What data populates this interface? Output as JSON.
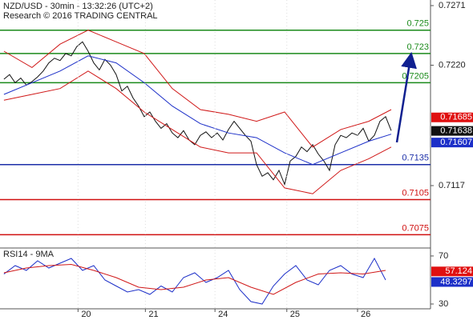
{
  "chart_data": [
    {
      "type": "line",
      "title": "NZD/USD - 30min - 13:32:26 (UTC+2)",
      "subtitle": "Research © 2016 TRADING CENTRAL",
      "xlim": [
        -0.7,
        76
      ],
      "ylim": [
        0.70636,
        0.72758
      ],
      "yticks": [
        0.7271,
        {
          "value": 0.722,
          "label": "0.7220"
        },
        0.7117
      ],
      "levels": [
        {
          "value": 0.725,
          "color": "#1a8a1a"
        },
        {
          "value": 0.723,
          "color": "#1a8a1a"
        },
        {
          "value": 0.7205,
          "color": "#1a8a1a"
        },
        {
          "value": 0.7135,
          "color": "#1c2fa8"
        },
        {
          "value": 0.7105,
          "color": "#d01010"
        },
        {
          "value": 0.7075,
          "color": "#d01010"
        }
      ],
      "markers": [
        {
          "value": 0.71685,
          "color": "#e01010"
        },
        {
          "value": 0.71638,
          "color": "#111111"
        },
        {
          "value": 0.71607,
          "color": "#1c2fc8"
        }
      ],
      "series": [
        {
          "color": "#111111",
          "x": [
            0,
            1,
            2,
            3,
            4,
            5,
            6,
            7,
            8,
            9,
            10,
            11,
            12,
            13,
            14,
            15,
            16,
            17,
            18,
            19,
            20,
            21,
            22,
            23,
            24,
            25,
            26,
            27,
            28,
            29,
            30,
            31,
            32,
            33,
            34,
            35,
            36,
            37,
            38,
            39,
            40,
            41,
            42,
            43,
            44,
            45,
            46,
            47,
            48,
            49,
            50,
            51,
            52,
            53,
            54,
            55,
            56,
            57,
            58,
            59,
            60,
            61,
            62,
            63,
            64,
            65,
            66,
            67,
            68,
            69
          ],
          "values": [
            0.7208,
            0.7212,
            0.7205,
            0.7209,
            0.7203,
            0.7206,
            0.721,
            0.7215,
            0.7222,
            0.7226,
            0.7224,
            0.723,
            0.7228,
            0.7236,
            0.724,
            0.7232,
            0.7222,
            0.7216,
            0.7225,
            0.722,
            0.7212,
            0.7198,
            0.7202,
            0.7192,
            0.7185,
            0.7176,
            0.718,
            0.7172,
            0.7166,
            0.717,
            0.7162,
            0.7158,
            0.7164,
            0.7156,
            0.7152,
            0.716,
            0.7163,
            0.7158,
            0.7162,
            0.7156,
            0.7165,
            0.7172,
            0.7166,
            0.716,
            0.7155,
            0.7135,
            0.7125,
            0.7128,
            0.7122,
            0.713,
            0.7118,
            0.7138,
            0.7142,
            0.715,
            0.7146,
            0.7152,
            0.7144,
            0.7138,
            0.713,
            0.7152,
            0.716,
            0.7158,
            0.7162,
            0.716,
            0.7166,
            0.7155,
            0.716,
            0.7172,
            0.7176,
            0.7164
          ]
        },
        {
          "color": "#d01818",
          "x": [
            0,
            5,
            10,
            15,
            20,
            25,
            30,
            35,
            40,
            45,
            50,
            55,
            60,
            65,
            69
          ],
          "values": [
            0.7232,
            0.7218,
            0.7238,
            0.725,
            0.724,
            0.723,
            0.72,
            0.7182,
            0.7178,
            0.7172,
            0.718,
            0.715,
            0.7165,
            0.7172,
            0.7182
          ]
        },
        {
          "color": "#d01818",
          "x": [
            0,
            5,
            10,
            15,
            20,
            25,
            30,
            35,
            40,
            45,
            50,
            55,
            60,
            65,
            69
          ],
          "values": [
            0.719,
            0.7195,
            0.72,
            0.7215,
            0.72,
            0.718,
            0.7165,
            0.715,
            0.7145,
            0.7145,
            0.7115,
            0.711,
            0.713,
            0.714,
            0.715
          ]
        },
        {
          "color": "#1c2fc8",
          "x": [
            0,
            5,
            10,
            15,
            20,
            25,
            30,
            35,
            40,
            45,
            50,
            55,
            60,
            65,
            69
          ],
          "values": [
            0.7195,
            0.7205,
            0.7215,
            0.7228,
            0.7222,
            0.7205,
            0.7185,
            0.717,
            0.7162,
            0.7158,
            0.7145,
            0.7135,
            0.7145,
            0.7155,
            0.7161
          ]
        }
      ],
      "forecast": {
        "color": "#102090",
        "x": [
          70,
          72.5
        ],
        "values": [
          0.7154,
          0.7228
        ]
      }
    },
    {
      "type": "line",
      "title": "RSI14 - 9MA",
      "xlim": [
        -0.7,
        76
      ],
      "ylim": [
        26,
        75.3
      ],
      "yticks": [
        70,
        30
      ],
      "xticks": [
        {
          "value": 13.2,
          "label": "20"
        },
        {
          "value": 25.2,
          "label": "21"
        },
        {
          "value": 37.6,
          "label": "24"
        },
        {
          "value": 50.4,
          "label": "25"
        },
        {
          "value": 63,
          "label": "26"
        }
      ],
      "markers": [
        {
          "value": 57.124,
          "color": "#e01010"
        },
        {
          "value": 48.3297,
          "color": "#1c2fc8"
        }
      ],
      "series": [
        {
          "color": "#1c2fc8",
          "x": [
            0,
            2,
            4,
            6,
            8,
            10,
            12,
            14,
            16,
            18,
            20,
            22,
            24,
            26,
            28,
            30,
            32,
            34,
            36,
            38,
            40,
            42,
            44,
            46,
            48,
            50,
            52,
            54,
            56,
            58,
            60,
            62,
            64,
            66,
            68
          ],
          "values": [
            55,
            62,
            58,
            66,
            60,
            64,
            68,
            58,
            62,
            50,
            45,
            40,
            42,
            38,
            45,
            40,
            52,
            56,
            48,
            52,
            58,
            42,
            32,
            30,
            45,
            55,
            62,
            50,
            46,
            58,
            62,
            55,
            52,
            68,
            50
          ]
        },
        {
          "color": "#d01818",
          "x": [
            0,
            4,
            8,
            12,
            16,
            20,
            24,
            28,
            32,
            36,
            40,
            44,
            48,
            52,
            56,
            60,
            64,
            68
          ],
          "values": [
            56,
            60,
            62,
            63,
            58,
            52,
            44,
            42,
            44,
            50,
            52,
            44,
            38,
            48,
            55,
            56,
            55,
            58
          ]
        }
      ]
    }
  ]
}
